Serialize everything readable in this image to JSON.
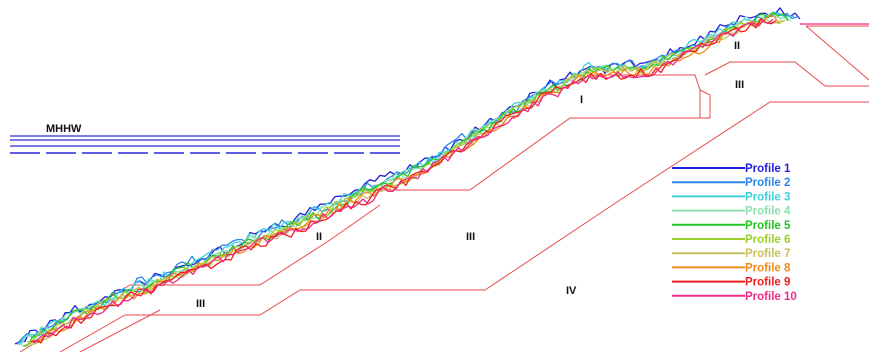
{
  "water_level": {
    "label": "MHHW",
    "color": "#2a2ad8"
  },
  "zones": [
    {
      "id": "zone-i",
      "label": "I"
    },
    {
      "id": "zone-ii-upper",
      "label": "II"
    },
    {
      "id": "zone-ii-lower",
      "label": "II"
    },
    {
      "id": "zone-iii-top",
      "label": "III"
    },
    {
      "id": "zone-iii-mid",
      "label": "III"
    },
    {
      "id": "zone-iii-low",
      "label": "III"
    },
    {
      "id": "zone-iv",
      "label": "IV"
    }
  ],
  "layer_line_color": "#e84a4a",
  "profiles": [
    {
      "name": "Profile 1",
      "color": "#1f1fe0"
    },
    {
      "name": "Profile 2",
      "color": "#2c86e6"
    },
    {
      "name": "Profile 3",
      "color": "#3fd0d8"
    },
    {
      "name": "Profile 4",
      "color": "#8fe0b0"
    },
    {
      "name": "Profile 5",
      "color": "#22c322"
    },
    {
      "name": "Profile 6",
      "color": "#9bd030"
    },
    {
      "name": "Profile 7",
      "color": "#c9c060"
    },
    {
      "name": "Profile 8",
      "color": "#f08a1a"
    },
    {
      "name": "Profile 9",
      "color": "#ee1c1c"
    },
    {
      "name": "Profile 10",
      "color": "#ee2a8a"
    }
  ]
}
